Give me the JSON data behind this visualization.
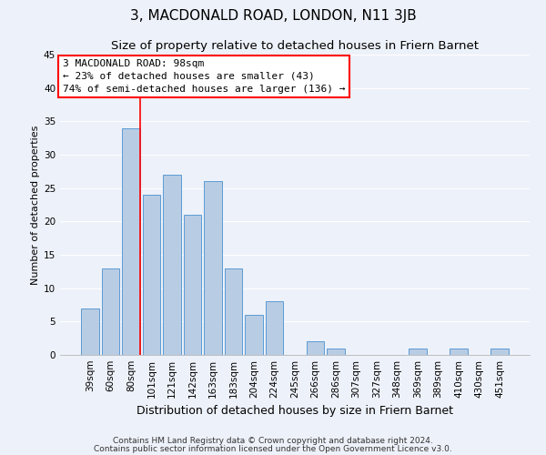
{
  "title": "3, MACDONALD ROAD, LONDON, N11 3JB",
  "subtitle": "Size of property relative to detached houses in Friern Barnet",
  "xlabel": "Distribution of detached houses by size in Friern Barnet",
  "ylabel": "Number of detached properties",
  "categories": [
    "39sqm",
    "60sqm",
    "80sqm",
    "101sqm",
    "121sqm",
    "142sqm",
    "163sqm",
    "183sqm",
    "204sqm",
    "224sqm",
    "245sqm",
    "266sqm",
    "286sqm",
    "307sqm",
    "327sqm",
    "348sqm",
    "369sqm",
    "389sqm",
    "410sqm",
    "430sqm",
    "451sqm"
  ],
  "values": [
    7,
    13,
    34,
    24,
    27,
    21,
    26,
    13,
    6,
    8,
    0,
    2,
    1,
    0,
    0,
    0,
    1,
    0,
    1,
    0,
    1
  ],
  "bar_color": "#b8cce4",
  "bar_edge_color": "#5b9bd5",
  "vline_color": "#ff0000",
  "vline_x_index": 2.425,
  "annotation_title": "3 MACDONALD ROAD: 98sqm",
  "annotation_line1": "← 23% of detached houses are smaller (43)",
  "annotation_line2": "74% of semi-detached houses are larger (136) →",
  "annotation_box_color": "#ffffff",
  "annotation_box_edge_color": "#ff0000",
  "ylim": [
    0,
    45
  ],
  "yticks": [
    0,
    5,
    10,
    15,
    20,
    25,
    30,
    35,
    40,
    45
  ],
  "footnote1": "Contains HM Land Registry data © Crown copyright and database right 2024.",
  "footnote2": "Contains public sector information licensed under the Open Government Licence v3.0.",
  "bg_color": "#edf1f9",
  "plot_bg_color": "#edf1f9",
  "grid_color": "#ffffff",
  "title_fontsize": 11,
  "subtitle_fontsize": 9.5,
  "xlabel_fontsize": 9,
  "ylabel_fontsize": 8,
  "tick_fontsize": 7.5,
  "annotation_fontsize": 8,
  "footnote_fontsize": 6.5
}
